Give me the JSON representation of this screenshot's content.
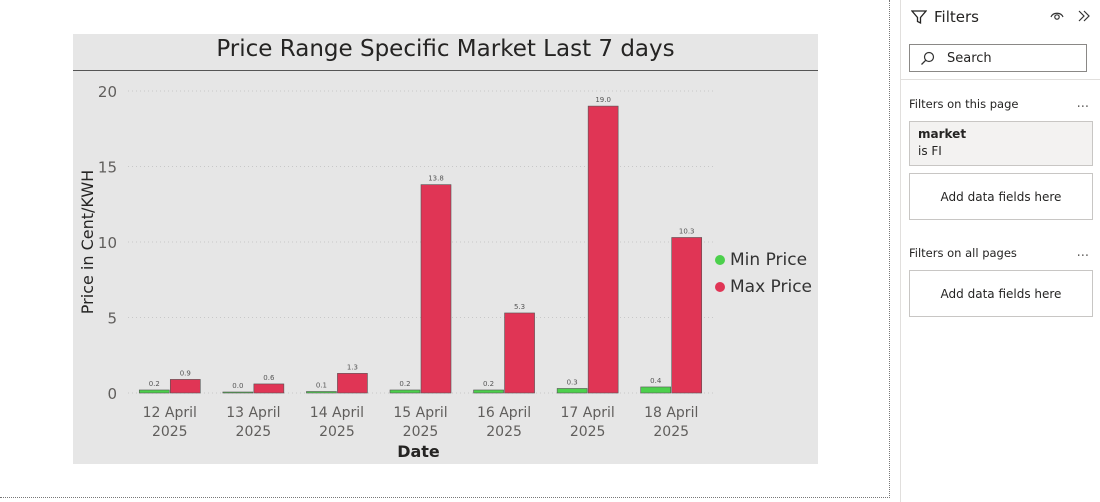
{
  "chart_data": {
    "type": "bar",
    "title": "Price Range Specific Market Last 7 days",
    "xlabel": "Date",
    "ylabel": "Price in Cent/KWH",
    "categories": [
      [
        "12 April",
        "2025"
      ],
      [
        "13 April",
        "2025"
      ],
      [
        "14 April",
        "2025"
      ],
      [
        "15 April",
        "2025"
      ],
      [
        "16 April",
        "2025"
      ],
      [
        "17 April",
        "2025"
      ],
      [
        "18 April",
        "2025"
      ]
    ],
    "series": [
      {
        "name": "Min Price",
        "color": "#4cd04c",
        "values": [
          0.2,
          0.0,
          0.1,
          0.2,
          0.2,
          0.3,
          0.4
        ],
        "labels": [
          "0.2",
          "0.0",
          "0.1",
          "0.2",
          "0.2",
          "0.3",
          "0.4"
        ]
      },
      {
        "name": "Max Price",
        "color": "#e03555",
        "values": [
          0.9,
          0.6,
          1.3,
          13.8,
          5.3,
          19.0,
          10.3
        ],
        "labels": [
          "0.9",
          "0.6",
          "1.3",
          "13.8",
          "5.3",
          "19.0",
          "10.3"
        ]
      }
    ],
    "yticks": [
      0,
      5,
      10,
      15,
      20
    ],
    "ylim": [
      0,
      20
    ],
    "grid": true,
    "legend_position": "right"
  },
  "filters": {
    "title": "Filters",
    "search_placeholder": "Search",
    "on_this_page_label": "Filters on this page",
    "on_all_pages_label": "Filters on all pages",
    "more_icon": "...",
    "card": {
      "field": "market",
      "condition": "is FI"
    },
    "add_fields_label": "Add data fields here"
  }
}
